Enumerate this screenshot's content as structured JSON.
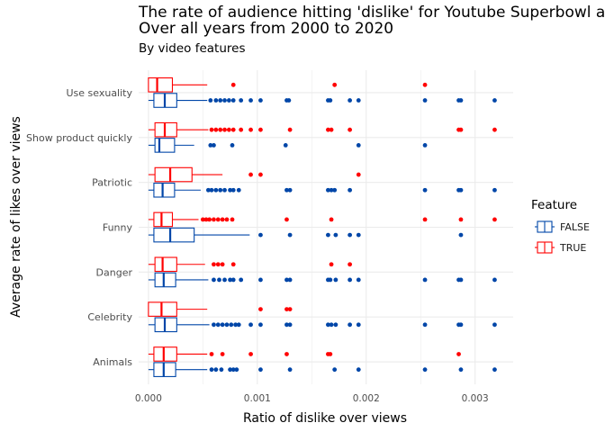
{
  "chart_data": {
    "type": "boxplot",
    "title": "The rate of audience hitting 'dislike' for Youtube Superbowl ads",
    "title_line2": "Over all years from 2000 to 2020",
    "subtitle": "By video features",
    "xlabel": "Ratio of dislike over views",
    "ylabel": "Average rate of likes over views",
    "xlim": [
      -9e-05,
      0.00335
    ],
    "x_ticks": [
      0,
      0.001,
      0.002,
      0.003
    ],
    "x_tick_labels": [
      "0.000",
      "0.001",
      "0.002",
      "0.003"
    ],
    "categories": [
      "Use sexuality",
      "Show product quickly",
      "Patriotic",
      "Funny",
      "Danger",
      "Celebrity",
      "Animals"
    ],
    "legend_title": "Feature",
    "legend_position": "right",
    "grid": true,
    "series": [
      {
        "name": "FALSE",
        "color": "#0046A8",
        "boxes": [
          {
            "category": "Use sexuality",
            "q1": 5e-05,
            "median": 0.00015,
            "q3": 0.00026,
            "whisker_low": 0.0,
            "whisker_high": 0.00054,
            "outliers": [
              0.00057,
              0.00062,
              0.00066,
              0.0007,
              0.00074,
              0.00078,
              0.00085,
              0.00094,
              0.00103,
              0.00127,
              0.00129,
              0.00165,
              0.00167,
              0.00185,
              0.00193,
              0.00254,
              0.00285,
              0.00287,
              0.00318
            ]
          },
          {
            "category": "Show product quickly",
            "q1": 6e-05,
            "median": 0.0001,
            "q3": 0.00024,
            "whisker_low": 0.0,
            "whisker_high": 0.00042,
            "outliers": [
              0.00057,
              0.0006,
              0.00077,
              0.00126,
              0.00193,
              0.00254
            ]
          },
          {
            "category": "Patriotic",
            "q1": 5e-05,
            "median": 0.00013,
            "q3": 0.00024,
            "whisker_low": 0.0,
            "whisker_high": 0.00048,
            "outliers": [
              0.00055,
              0.00058,
              0.00062,
              0.00066,
              0.0007,
              0.00075,
              0.00078,
              0.00083,
              0.00127,
              0.0013,
              0.00165,
              0.00168,
              0.00171,
              0.00185,
              0.00254,
              0.00285,
              0.00287,
              0.00318
            ]
          },
          {
            "category": "Funny",
            "q1": 5e-05,
            "median": 0.0002,
            "q3": 0.00042,
            "whisker_low": 0.0,
            "whisker_high": 0.00093,
            "outliers": [
              0.00103,
              0.0013,
              0.00165,
              0.00172,
              0.00185,
              0.00193,
              0.00287
            ]
          },
          {
            "category": "Danger",
            "q1": 6e-05,
            "median": 0.00014,
            "q3": 0.00025,
            "whisker_low": 0.0,
            "whisker_high": 0.00055,
            "outliers": [
              0.0006,
              0.00065,
              0.0007,
              0.00075,
              0.00078,
              0.00085,
              0.00103,
              0.00127,
              0.0013,
              0.00165,
              0.00167,
              0.00172,
              0.00185,
              0.00193,
              0.00254,
              0.00285,
              0.00287,
              0.00318
            ]
          },
          {
            "category": "Celebrity",
            "q1": 6e-05,
            "median": 0.00015,
            "q3": 0.00026,
            "whisker_low": 0.0,
            "whisker_high": 0.00056,
            "outliers": [
              0.0006,
              0.00064,
              0.00068,
              0.00072,
              0.00076,
              0.0008,
              0.00083,
              0.00094,
              0.00103,
              0.00127,
              0.0013,
              0.00165,
              0.00168,
              0.00172,
              0.00185,
              0.00193,
              0.00254,
              0.00285,
              0.00287,
              0.00318
            ]
          },
          {
            "category": "Animals",
            "q1": 5e-05,
            "median": 0.00014,
            "q3": 0.00025,
            "whisker_low": 0.0,
            "whisker_high": 0.00054,
            "outliers": [
              0.00058,
              0.00062,
              0.00067,
              0.00075,
              0.00078,
              0.00081,
              0.00103,
              0.0013,
              0.00171,
              0.00193,
              0.00254,
              0.00287,
              0.00318
            ]
          }
        ]
      },
      {
        "name": "TRUE",
        "color": "#FF0000",
        "boxes": [
          {
            "category": "Use sexuality",
            "q1": 0.0,
            "median": 8e-05,
            "q3": 0.00022,
            "whisker_low": 0.0,
            "whisker_high": 0.00054,
            "outliers": [
              0.00078,
              0.00171,
              0.00254
            ]
          },
          {
            "category": "Show product quickly",
            "q1": 6e-05,
            "median": 0.00015,
            "q3": 0.00026,
            "whisker_low": 0.0,
            "whisker_high": 0.00055,
            "outliers": [
              0.00058,
              0.00062,
              0.00066,
              0.0007,
              0.00074,
              0.00078,
              0.00085,
              0.00094,
              0.00103,
              0.0013,
              0.00165,
              0.00168,
              0.00185,
              0.00285,
              0.00287,
              0.00318
            ]
          },
          {
            "category": "Patriotic",
            "q1": 6e-05,
            "median": 0.0002,
            "q3": 0.0004,
            "whisker_low": 0.0,
            "whisker_high": 0.00068,
            "outliers": [
              0.00094,
              0.00103,
              0.00193
            ]
          },
          {
            "category": "Funny",
            "q1": 5e-05,
            "median": 0.00012,
            "q3": 0.00022,
            "whisker_low": 0.0,
            "whisker_high": 0.00046,
            "outliers": [
              0.0005,
              0.00053,
              0.00056,
              0.0006,
              0.00064,
              0.00068,
              0.00072,
              0.00077,
              0.00127,
              0.00168,
              0.00254,
              0.00287,
              0.00318
            ]
          },
          {
            "category": "Danger",
            "q1": 6e-05,
            "median": 0.00013,
            "q3": 0.00026,
            "whisker_low": 0.0,
            "whisker_high": 0.00052,
            "outliers": [
              0.0006,
              0.00064,
              0.00068,
              0.00078,
              0.00168,
              0.00185
            ]
          },
          {
            "category": "Celebrity",
            "q1": 0.0,
            "median": 0.00012,
            "q3": 0.00026,
            "whisker_low": 0.0,
            "whisker_high": 0.00054,
            "outliers": [
              0.00103,
              0.00127,
              0.0013
            ]
          },
          {
            "category": "Animals",
            "q1": 5e-05,
            "median": 0.00014,
            "q3": 0.00026,
            "whisker_low": 0.0,
            "whisker_high": 0.00054,
            "outliers": [
              0.00058,
              0.00068,
              0.00094,
              0.00127,
              0.00165,
              0.00167,
              0.00285
            ]
          }
        ]
      }
    ]
  }
}
